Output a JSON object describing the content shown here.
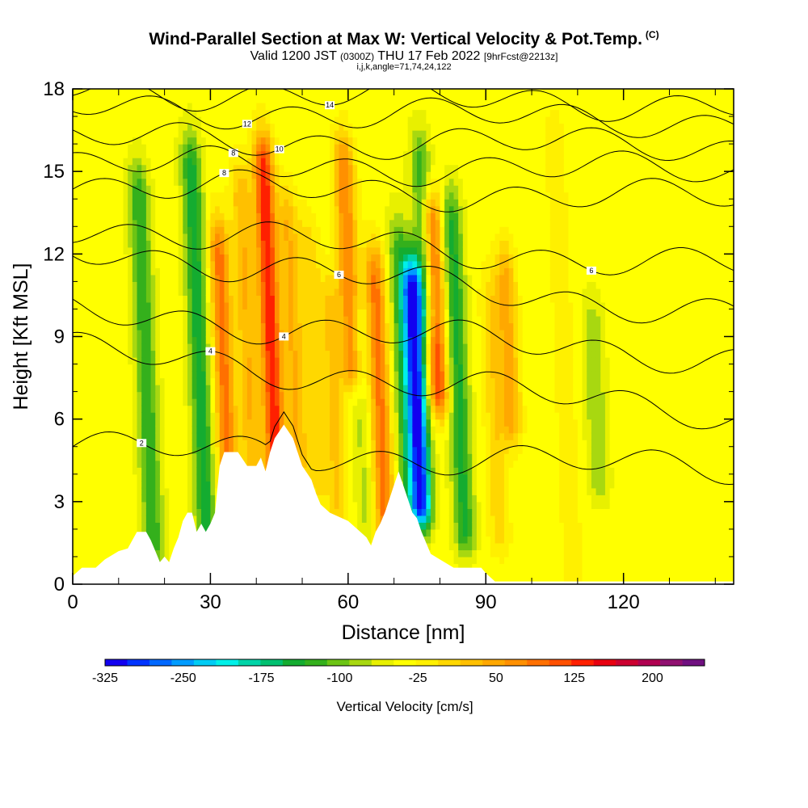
{
  "title": {
    "main": "Wind-Parallel Section at Max W: Vertical Velocity & Pot.Temp.",
    "copyright": "(C)",
    "valid_prefix": "Valid 1200 JST",
    "valid_utc": "(0300Z)",
    "valid_date": "THU 17 Feb 2022",
    "forecast": "[9hrFcst@2213z]",
    "section_params": "i,j,k,angle=71,74,24,122"
  },
  "chart_data": {
    "type": "heatmap",
    "xlabel": "Distance [nm]",
    "ylabel": "Height [Kft MSL]",
    "xlim": [
      0,
      144
    ],
    "ylim": [
      0,
      18
    ],
    "xticks": [
      0,
      30,
      60,
      90,
      120
    ],
    "yticks": [
      0,
      3,
      6,
      9,
      12,
      15,
      18
    ],
    "colorbar": {
      "title": "Vertical Velocity [cm/s]",
      "min": -325,
      "max": 250,
      "step": 25,
      "tick_values": [
        -325,
        -250,
        -175,
        -100,
        -25,
        50,
        125,
        200
      ],
      "colors": [
        "#1200f0",
        "#0034ff",
        "#0068ff",
        "#009cff",
        "#00ccf4",
        "#00f0e8",
        "#00d4a8",
        "#00c070",
        "#14ac30",
        "#34b01c",
        "#6cc414",
        "#a8d810",
        "#e8f000",
        "#ffff00",
        "#fff000",
        "#ffd800",
        "#ffc000",
        "#ffa800",
        "#ff9000",
        "#ff7000",
        "#ff5000",
        "#ff2000",
        "#e80010",
        "#cc0030",
        "#b00050",
        "#901070",
        "#701080"
      ]
    },
    "background_velocity": 10,
    "velocity_features": [
      {
        "x": 16,
        "z0": 1.5,
        "z1": 14,
        "value": -110
      },
      {
        "x": 27.5,
        "z0": 2,
        "z1": 15,
        "value": -130
      },
      {
        "x": 33,
        "z0": 3,
        "z1": 12,
        "value": 150
      },
      {
        "x": 38,
        "z0": 4,
        "z1": 14,
        "value": 90
      },
      {
        "x": 43,
        "z0": 4,
        "z1": 15,
        "value": 210
      },
      {
        "x": 48,
        "z0": 4.5,
        "z1": 13,
        "value": 90
      },
      {
        "x": 52.5,
        "z0": 4,
        "z1": 12,
        "value": 60
      },
      {
        "x": 57,
        "z0": 3,
        "z1": 10,
        "value": 70
      },
      {
        "x": 60,
        "z0": 8,
        "z1": 15,
        "value": 140
      },
      {
        "x": 63,
        "z0": 2.5,
        "z1": 9,
        "value": -40
      },
      {
        "x": 67,
        "z0": 2,
        "z1": 11,
        "value": 150
      },
      {
        "x": 72,
        "z0": 3,
        "z1": 12,
        "value": -90
      },
      {
        "x": 75,
        "z0": 3,
        "z1": 10.5,
        "value": -320
      },
      {
        "x": 76.5,
        "z0": 10,
        "z1": 15,
        "value": -110
      },
      {
        "x": 79,
        "z0": 7,
        "z1": 13,
        "value": 180
      },
      {
        "x": 84,
        "z0": 2,
        "z1": 13,
        "value": -120
      },
      {
        "x": 92,
        "z0": 2,
        "z1": 10,
        "value": 60
      },
      {
        "x": 95,
        "z0": 6,
        "z1": 11,
        "value": 100
      },
      {
        "x": 114,
        "z0": 4,
        "z1": 9,
        "value": -60
      },
      {
        "x": 107,
        "z0": 0.5,
        "z1": 16,
        "value": 35
      }
    ],
    "terrain": [
      {
        "x": 0,
        "h": 0.3
      },
      {
        "x": 2,
        "h": 0.6
      },
      {
        "x": 5,
        "h": 0.6
      },
      {
        "x": 7,
        "h": 0.9
      },
      {
        "x": 10,
        "h": 1.2
      },
      {
        "x": 12,
        "h": 1.3
      },
      {
        "x": 13,
        "h": 1.6
      },
      {
        "x": 14,
        "h": 1.9
      },
      {
        "x": 16,
        "h": 1.9
      },
      {
        "x": 17,
        "h": 1.6
      },
      {
        "x": 18,
        "h": 1.2
      },
      {
        "x": 19,
        "h": 0.8
      },
      {
        "x": 20,
        "h": 1.0
      },
      {
        "x": 21,
        "h": 0.8
      },
      {
        "x": 22,
        "h": 1.3
      },
      {
        "x": 23,
        "h": 1.7
      },
      {
        "x": 24,
        "h": 2.3
      },
      {
        "x": 25,
        "h": 2.6
      },
      {
        "x": 26,
        "h": 2.6
      },
      {
        "x": 27,
        "h": 1.9
      },
      {
        "x": 28,
        "h": 2.2
      },
      {
        "x": 29,
        "h": 1.9
      },
      {
        "x": 30,
        "h": 2.2
      },
      {
        "x": 31,
        "h": 2.6
      },
      {
        "x": 32,
        "h": 4.3
      },
      {
        "x": 33,
        "h": 4.8
      },
      {
        "x": 36,
        "h": 4.8
      },
      {
        "x": 38,
        "h": 4.3
      },
      {
        "x": 40,
        "h": 4.3
      },
      {
        "x": 41,
        "h": 4.6
      },
      {
        "x": 42,
        "h": 4.1
      },
      {
        "x": 43,
        "h": 4.8
      },
      {
        "x": 44,
        "h": 5.3
      },
      {
        "x": 46,
        "h": 5.8
      },
      {
        "x": 48,
        "h": 5.3
      },
      {
        "x": 49,
        "h": 4.8
      },
      {
        "x": 50,
        "h": 4.3
      },
      {
        "x": 52,
        "h": 3.8
      },
      {
        "x": 53,
        "h": 3.3
      },
      {
        "x": 54,
        "h": 2.9
      },
      {
        "x": 56,
        "h": 2.6
      },
      {
        "x": 60,
        "h": 2.3
      },
      {
        "x": 62,
        "h": 2.0
      },
      {
        "x": 64,
        "h": 1.7
      },
      {
        "x": 65,
        "h": 1.4
      },
      {
        "x": 66,
        "h": 1.9
      },
      {
        "x": 67,
        "h": 2.2
      },
      {
        "x": 68,
        "h": 2.6
      },
      {
        "x": 69,
        "h": 3.1
      },
      {
        "x": 70,
        "h": 3.6
      },
      {
        "x": 71,
        "h": 4.1
      },
      {
        "x": 72,
        "h": 3.6
      },
      {
        "x": 73,
        "h": 3.1
      },
      {
        "x": 74,
        "h": 2.6
      },
      {
        "x": 75,
        "h": 2.4
      },
      {
        "x": 76,
        "h": 1.9
      },
      {
        "x": 77,
        "h": 1.5
      },
      {
        "x": 78,
        "h": 1.1
      },
      {
        "x": 80,
        "h": 0.9
      },
      {
        "x": 83,
        "h": 0.6
      },
      {
        "x": 86,
        "h": 0.6
      },
      {
        "x": 88,
        "h": 0.6
      },
      {
        "x": 89,
        "h": 0.6
      },
      {
        "x": 90,
        "h": 0.4
      },
      {
        "x": 92,
        "h": 0.1
      },
      {
        "x": 94,
        "h": 0.1
      },
      {
        "x": 144,
        "h": 0.1
      }
    ],
    "theta_contours": [
      {
        "label": "2",
        "label_x": 15,
        "z_left": 5.0,
        "z_right": 4.2
      },
      {
        "label": "4",
        "label_x": 30,
        "z_left": 8.5,
        "z_right": 6.2
      },
      {
        "label": "4",
        "label_x": 46,
        "z_left": 9.9,
        "z_right": 8.2
      },
      {
        "label": "6",
        "label_x": 58,
        "z_left": 12.2,
        "z_right": 9.8
      },
      {
        "label": "6",
        "label_x": 113,
        "z_left": 13.0,
        "z_right": 11.5
      },
      {
        "label": "8",
        "label_x": 33,
        "z_left": 14.5,
        "z_right": 14.0
      },
      {
        "label": "8",
        "label_x": 35,
        "z_left": 15.3,
        "z_right": 15.0
      },
      {
        "label": "10",
        "label_x": 45,
        "z_left": 16.2,
        "z_right": 15.9
      },
      {
        "label": "12",
        "label_x": 38,
        "z_left": 17.3,
        "z_right": 16.8
      },
      {
        "label": "14",
        "label_x": 56,
        "z_left": 18.0,
        "z_right": 17.4
      }
    ]
  }
}
